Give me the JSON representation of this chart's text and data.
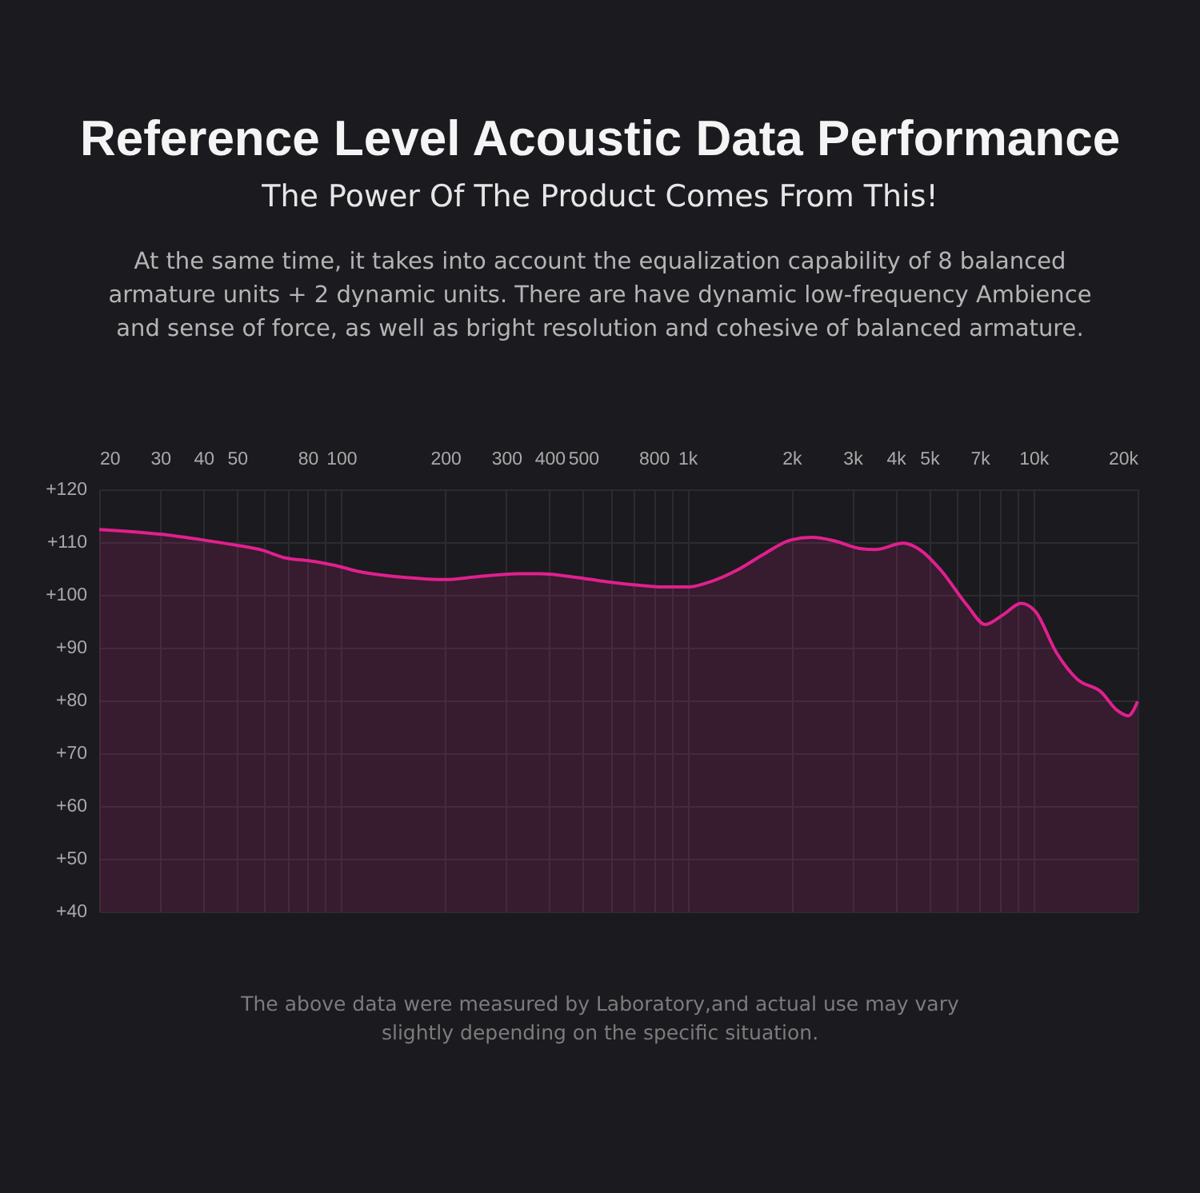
{
  "chart_data": {
    "type": "area",
    "title": "Reference Level Acoustic Data Performance",
    "subtitle": "The Power Of The Product Comes From This!",
    "annotations": [
      "At the same time, it takes into account the equalization capability of 8 balanced armature units + 2 dynamic units. There are have dynamic low-frequency Ambience and sense of force, as well as bright resolution and cohesive of balanced armature.",
      "The above data were measured by Laboratory,and actual use may vary slightly depending on the specific situation."
    ],
    "log": "x",
    "grid": true,
    "tick_labels": "xy",
    "xlim": [
      20,
      20000
    ],
    "xticks": [
      20,
      30,
      40,
      50,
      {
        "value": 60,
        "label": null
      },
      {
        "value": 70,
        "label": null
      },
      80,
      {
        "value": 90,
        "label": null
      },
      100,
      200,
      300,
      400,
      500,
      {
        "value": 600,
        "label": null
      },
      {
        "value": 700,
        "label": null
      },
      800,
      {
        "value": 900,
        "label": null
      },
      {
        "value": 1000,
        "label": "1k"
      },
      {
        "value": 2000,
        "label": "2k"
      },
      {
        "value": 3000,
        "label": "3k"
      },
      {
        "value": 4000,
        "label": "4k"
      },
      {
        "value": 5000,
        "label": "5k"
      },
      {
        "value": 6000,
        "label": null
      },
      {
        "value": 7000,
        "label": "7k"
      },
      {
        "value": 8000,
        "label": null
      },
      {
        "value": 9000,
        "label": null
      },
      {
        "value": 10000,
        "label": "10k"
      },
      {
        "value": 20000,
        "label": "20k"
      }
    ],
    "ylim": [
      40,
      120
    ],
    "yticks": [
      {
        "value": 40,
        "label": "+40"
      },
      {
        "value": 50,
        "label": "+50"
      },
      {
        "value": 60,
        "label": "+60"
      },
      {
        "value": 70,
        "label": "+70"
      },
      {
        "value": 80,
        "label": "+80"
      },
      {
        "value": 90,
        "label": "+90"
      },
      {
        "value": 100,
        "label": "+100"
      },
      {
        "value": 110,
        "label": "+110"
      },
      {
        "value": 120,
        "label": "+120"
      }
    ],
    "series": [
      {
        "color": "#e0208e",
        "x": [
          20,
          30,
          40,
          50,
          59,
          69,
          80,
          100,
          111,
          143,
          200,
          244,
          325,
          375,
          480,
          555,
          706,
          846,
          1010,
          1155,
          1393,
          1661,
          1990,
          2290,
          2640,
          3150,
          3490,
          4210,
          4690,
          5400,
          6440,
          7260,
          8200,
          9210,
          10120,
          11650,
          13400,
          15700,
          17400,
          18800,
          20000
        ],
        "values": [
          112.4,
          111.5,
          110.4,
          109.4,
          108.5,
          107,
          106.5,
          105.3,
          104.5,
          103.5,
          102.9,
          103.4,
          104,
          104,
          103.3,
          102.7,
          101.9,
          101.5,
          101.5,
          102.4,
          104.7,
          107.7,
          110.4,
          110.9,
          110.3,
          108.8,
          108.6,
          109.8,
          108.6,
          104.7,
          98,
          94.4,
          96.3,
          98.4,
          96.9,
          89.1,
          84,
          81.6,
          78.2,
          77.1,
          79.8
        ]
      }
    ]
  }
}
